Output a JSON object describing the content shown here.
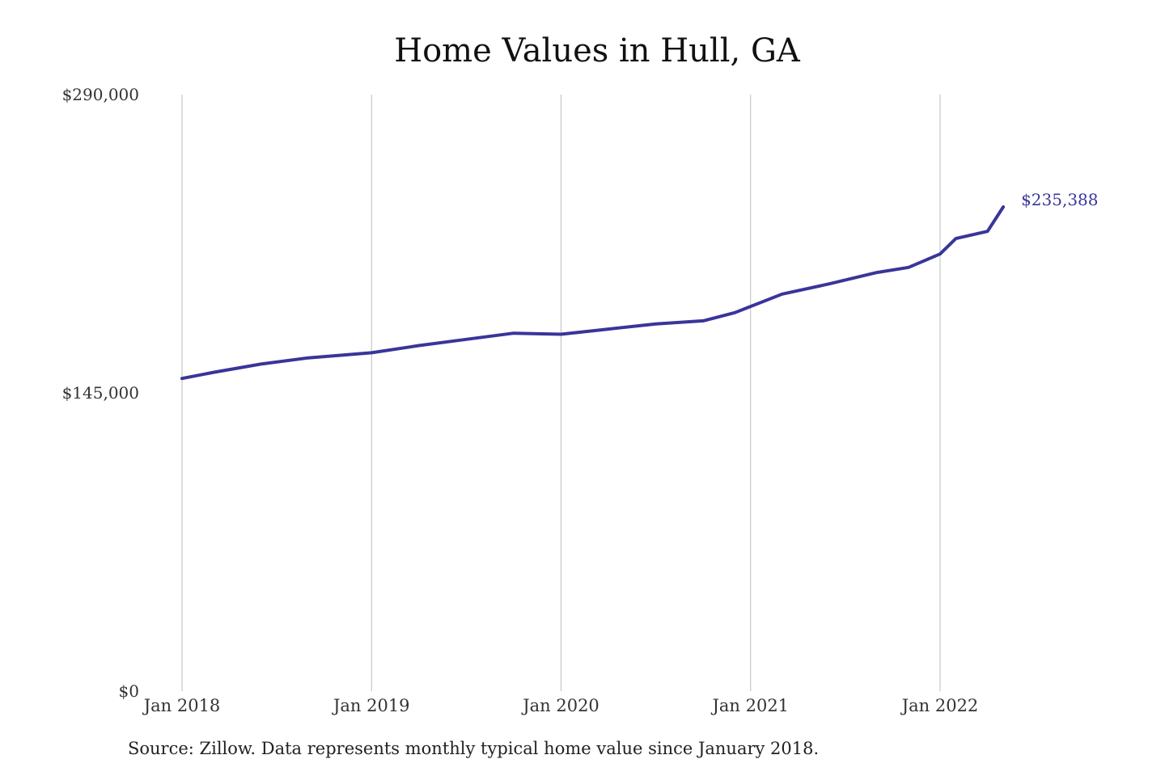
{
  "chart_data": {
    "type": "line",
    "title": "Home Values in Hull, GA",
    "xlabel": "",
    "ylabel": "",
    "ylim": [
      0,
      290000
    ],
    "y_ticks": [
      {
        "value": 0,
        "label": "$0"
      },
      {
        "value": 145000,
        "label": "$145,000"
      },
      {
        "value": 290000,
        "label": "$290,000"
      }
    ],
    "x_ticks": [
      {
        "value": "2018-01",
        "label": "Jan 2018"
      },
      {
        "value": "2019-01",
        "label": "Jan 2019"
      },
      {
        "value": "2020-01",
        "label": "Jan 2020"
      },
      {
        "value": "2021-01",
        "label": "Jan 2021"
      },
      {
        "value": "2022-01",
        "label": "Jan 2022"
      }
    ],
    "grid": "vertical",
    "series": [
      {
        "color": "#39359a",
        "x": [
          "2018-01",
          "2018-03",
          "2018-06",
          "2018-09",
          "2019-01",
          "2019-04",
          "2019-07",
          "2019-10",
          "2020-01",
          "2020-04",
          "2020-07",
          "2020-10",
          "2020-12",
          "2021-03",
          "2021-06",
          "2021-09",
          "2021-11",
          "2022-01",
          "2022-02",
          "2022-04",
          "2022-05"
        ],
        "values": [
          152000,
          155000,
          159000,
          162000,
          164500,
          168000,
          171000,
          174000,
          173500,
          176000,
          178500,
          180000,
          184000,
          193000,
          198000,
          203500,
          206000,
          212500,
          220000,
          223500,
          235388
        ]
      }
    ],
    "end_label": "$235,388",
    "source": "Source: Zillow. Data represents monthly typical home value since January 2018."
  }
}
